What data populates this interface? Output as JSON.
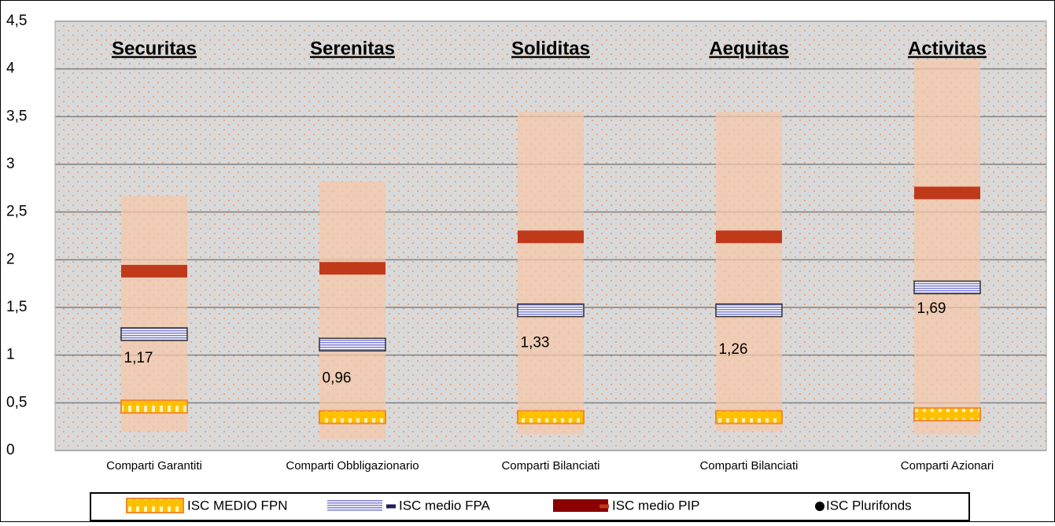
{
  "chart_data": {
    "type": "range_marker",
    "categories": [
      "Comparti Garantiti",
      "Comparti Obbligazionario",
      "Comparti Bilanciati",
      "Comparti Bilanciati",
      "Comparti Azionari"
    ],
    "annotations": [
      "Securitas",
      "Serenitas",
      "Soliditas",
      "Aequitas",
      "Activitas"
    ],
    "range_low": [
      0.2,
      0.12,
      0.17,
      0.2,
      0.17
    ],
    "range_high": [
      2.67,
      2.82,
      3.55,
      3.55,
      4.1
    ],
    "range_color": "#f4c7a8",
    "series": [
      {
        "name": "ISC MEDIO FPN",
        "color": "#ffc000",
        "values": [
          0.46,
          0.35,
          0.35,
          0.35,
          0.38
        ]
      },
      {
        "name": "ISC medio FPA",
        "color": "#8e8ee0",
        "values": [
          1.22,
          1.11,
          1.47,
          1.47,
          1.71
        ]
      },
      {
        "name": "ISC medio PIP",
        "color": "#c0391b",
        "values": [
          1.88,
          1.91,
          2.24,
          2.24,
          2.7
        ]
      },
      {
        "name": "ISC Plurifonds",
        "color": "#000000",
        "values": [
          1.17,
          0.96,
          1.33,
          1.26,
          1.69
        ],
        "value_labels": [
          "1,17",
          "0,96",
          "1,33",
          "1,26",
          "1,69"
        ]
      }
    ],
    "ylim": [
      0,
      4.5
    ],
    "yticks": [
      0,
      {
        "value": 0.5,
        "label": "0,5"
      },
      1,
      {
        "value": 1.5,
        "label": "1,5"
      },
      2,
      {
        "value": 2.5,
        "label": "2,5"
      },
      3,
      {
        "value": 3.5,
        "label": "3,5"
      },
      4,
      {
        "value": 4.5,
        "label": "4,5"
      }
    ],
    "grid": true
  }
}
